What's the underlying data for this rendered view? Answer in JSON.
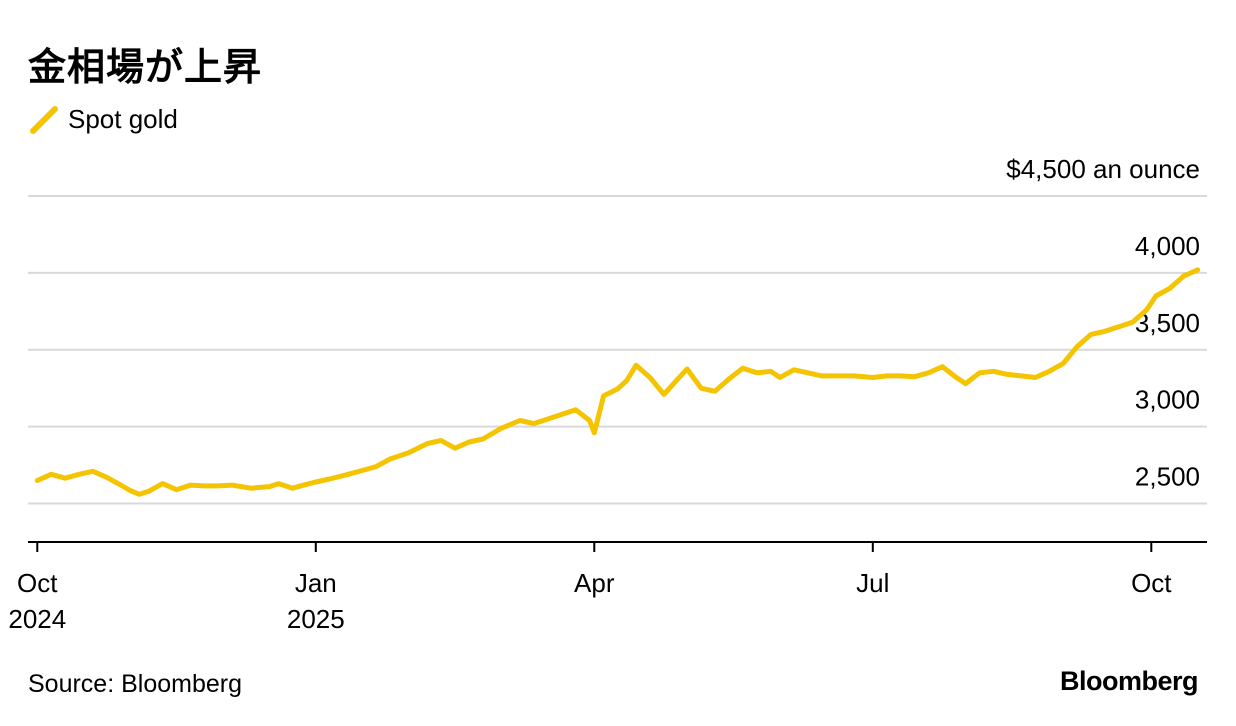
{
  "title": "金相場が上昇",
  "legend": {
    "label": "Spot gold",
    "color": "#F5C400"
  },
  "source": "Source: Bloomberg",
  "brand": "Bloomberg",
  "chart_data": {
    "type": "line",
    "title": "金相場が上昇",
    "ylabel": "$4,500 an ounce",
    "xlabel": "",
    "ylim": [
      2250,
      4500
    ],
    "yticks": [
      {
        "value": 4500,
        "label": "$4,500 an ounce"
      },
      {
        "value": 4000,
        "label": "4,000"
      },
      {
        "value": 3500,
        "label": "3,500"
      },
      {
        "value": 3000,
        "label": "3,000"
      },
      {
        "value": 2500,
        "label": "2,500"
      }
    ],
    "xlim": [
      -0.1,
      12.6
    ],
    "xticks": [
      {
        "value": 0,
        "label": "Oct",
        "sublabel": "2024"
      },
      {
        "value": 3,
        "label": "Jan",
        "sublabel": "2025"
      },
      {
        "value": 6,
        "label": "Apr",
        "sublabel": ""
      },
      {
        "value": 9,
        "label": "Jul",
        "sublabel": ""
      },
      {
        "value": 12,
        "label": "Oct",
        "sublabel": ""
      }
    ],
    "grid": true,
    "series": [
      {
        "name": "Spot gold",
        "color": "#F5C400",
        "x": [
          0,
          0.15,
          0.3,
          0.45,
          0.6,
          0.75,
          0.9,
          1.0,
          1.1,
          1.2,
          1.35,
          1.5,
          1.65,
          1.8,
          1.95,
          2.1,
          2.3,
          2.5,
          2.6,
          2.75,
          2.9,
          3.0,
          3.15,
          3.35,
          3.5,
          3.65,
          3.8,
          4.0,
          4.2,
          4.35,
          4.5,
          4.65,
          4.8,
          5.0,
          5.2,
          5.35,
          5.5,
          5.65,
          5.8,
          5.95,
          6.0,
          6.1,
          6.25,
          6.35,
          6.45,
          6.6,
          6.75,
          6.9,
          7.0,
          7.15,
          7.3,
          7.45,
          7.6,
          7.75,
          7.9,
          8.0,
          8.15,
          8.3,
          8.45,
          8.6,
          8.8,
          9.0,
          9.15,
          9.3,
          9.45,
          9.6,
          9.75,
          9.9,
          10.0,
          10.15,
          10.3,
          10.45,
          10.6,
          10.75,
          10.9,
          11.05,
          11.2,
          11.35,
          11.5,
          11.65,
          11.8,
          11.95,
          12.05,
          12.2,
          12.35,
          12.5
        ],
        "values": [
          2650,
          2690,
          2665,
          2690,
          2710,
          2670,
          2620,
          2585,
          2560,
          2580,
          2630,
          2590,
          2620,
          2615,
          2615,
          2620,
          2600,
          2610,
          2630,
          2600,
          2625,
          2640,
          2660,
          2690,
          2715,
          2740,
          2790,
          2830,
          2890,
          2910,
          2860,
          2900,
          2920,
          2990,
          3040,
          3020,
          3050,
          3080,
          3110,
          3040,
          2960,
          3200,
          3245,
          3300,
          3400,
          3320,
          3210,
          3310,
          3375,
          3250,
          3230,
          3310,
          3380,
          3350,
          3360,
          3320,
          3370,
          3350,
          3330,
          3330,
          3330,
          3320,
          3330,
          3330,
          3325,
          3350,
          3390,
          3320,
          3280,
          3350,
          3360,
          3340,
          3330,
          3320,
          3360,
          3410,
          3520,
          3600,
          3620,
          3650,
          3680,
          3760,
          3850,
          3900,
          3980,
          4020
        ]
      }
    ]
  }
}
